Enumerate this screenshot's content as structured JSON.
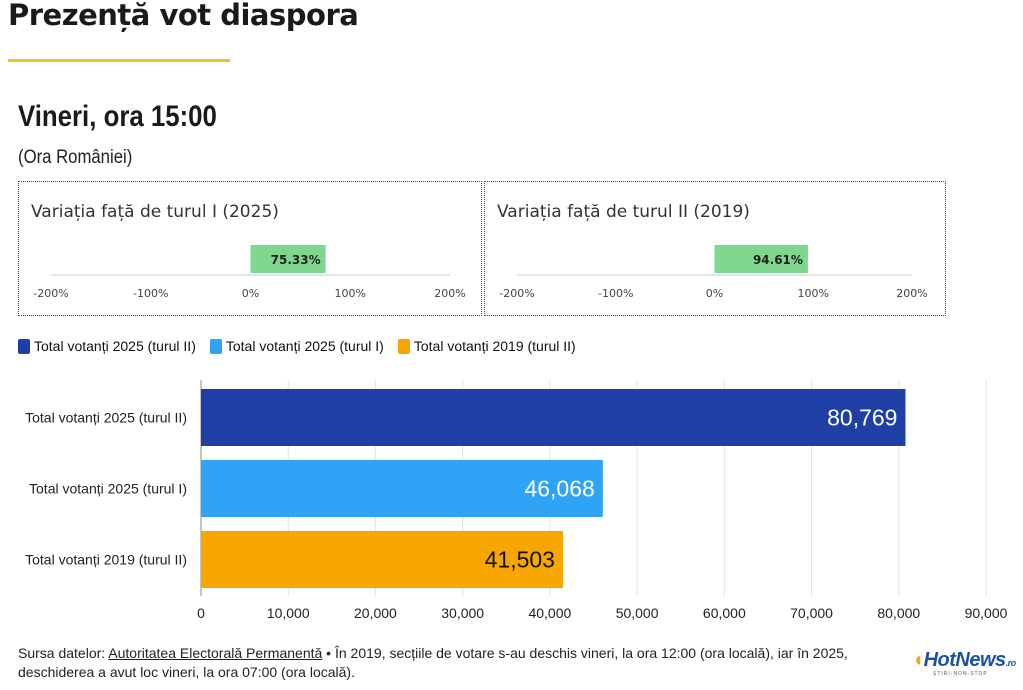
{
  "page": {
    "title": "Prezență vot diaspora",
    "subtitle": "Vineri, ora 15:00",
    "note": "(Ora României)"
  },
  "variation_panels": [
    {
      "title": "Variația față de turul I (2025)",
      "value": 75.33,
      "label": "75.33%",
      "ticks": [
        "-200%",
        "-100%",
        "0%",
        "100%",
        "200%"
      ],
      "color": "#7fd68f"
    },
    {
      "title": "Variația față de turul II (2019)",
      "value": 94.61,
      "label": "94.61%",
      "ticks": [
        "-200%",
        "-100%",
        "0%",
        "100%",
        "200%"
      ],
      "color": "#7fd68f"
    }
  ],
  "chart_data": {
    "type": "bar",
    "orientation": "horizontal",
    "categories": [
      "Total votanți 2025 (turul II)",
      "Total votanți 2025 (turul I)",
      "Total votanți 2019 (turul II)"
    ],
    "values": [
      80769,
      46068,
      41503
    ],
    "value_labels": [
      "80,769",
      "46,068",
      "41,503"
    ],
    "colors": [
      "#1f3fa6",
      "#2fa3f5",
      "#f7a600"
    ],
    "label_colors": [
      "#ffffff",
      "#ffffff",
      "#111111"
    ],
    "xlim": [
      0,
      90000
    ],
    "xticks": [
      "0",
      "10,000",
      "20,000",
      "30,000",
      "40,000",
      "50,000",
      "60,000",
      "70,000",
      "80,000",
      "90,000"
    ],
    "grid": true,
    "legend": [
      {
        "name": "Total votanți 2025 (turul II)",
        "color": "#1f3fa6"
      },
      {
        "name": "Total votanți 2025 (turul I)",
        "color": "#2fa3f5"
      },
      {
        "name": "Total votanți 2019 (turul II)",
        "color": "#f7a600"
      }
    ]
  },
  "footer": {
    "source_prefix": "Sursa datelor: ",
    "source_link": "Autoritatea Electorală Permanentă",
    "text": " • În 2019, secțiile de votare s-au deschis vineri, la ora 12:00 (ora locală), iar în 2025, deschiderea a avut loc vineri, la ora 07:00 (ora locală)."
  },
  "logo": {
    "name": "HotNews",
    "suffix": ".ro",
    "tagline": "ȘTIRI-NON-STOP"
  }
}
